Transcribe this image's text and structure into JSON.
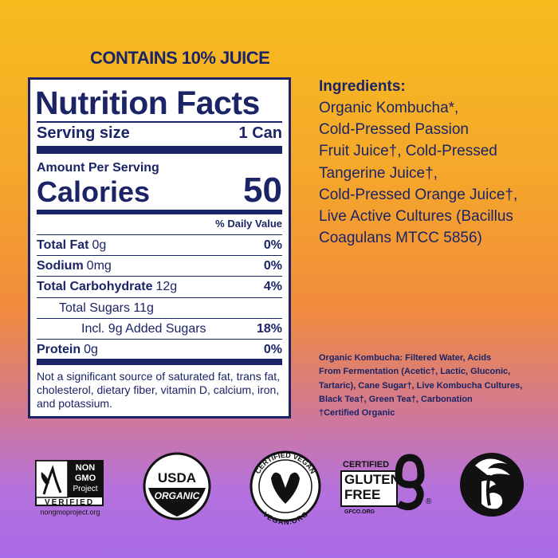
{
  "header": {
    "juice_note": "CONTAINS 10% JUICE"
  },
  "nutrition": {
    "title": "Nutrition Facts",
    "serving_label": "Serving size",
    "serving_value": "1 Can",
    "amount_per_serving": "Amount Per Serving",
    "calories_label": "Calories",
    "calories_value": "50",
    "dv_header": "% Daily Value",
    "rows": [
      {
        "label": "Total Fat",
        "amount": "0g",
        "dv": "0%"
      },
      {
        "label": "Sodium",
        "amount": "0mg",
        "dv": "0%"
      },
      {
        "label": "Total Carbohydrate",
        "amount": "12g",
        "dv": "4%"
      },
      {
        "label": "Total Sugars 11g"
      },
      {
        "label": "Incl. 9g Added Sugars",
        "dv": "18%"
      },
      {
        "label": "Protein",
        "amount": "0g",
        "dv": "0%"
      }
    ],
    "footnote": "Not a significant source of saturated fat, trans fat, cholesterol, dietary fiber, vitamin D, calcium, iron, and potassium."
  },
  "ingredients": {
    "title": "Ingredients:",
    "lines": [
      "Organic Kombucha*,",
      "Cold-Pressed Passion",
      "Fruit Juice†, Cold-Pressed",
      "Tangerine Juice†,",
      "Cold-Pressed Orange Juice†,",
      "Live Active Cultures (Bacillus",
      "Coagulans MTCC 5856)"
    ]
  },
  "kombucha_note": {
    "lines": [
      "Organic Kombucha: Filtered Water, Acids",
      "From Fermentation (Acetic†, Lactic, Gluconic,",
      "Tartaric), Cane Sugar†, Live Kombucha Cultures,",
      "Black Tea†, Green Tea†, Carbonation",
      "†Certified Organic"
    ]
  },
  "logos": {
    "non_gmo": {
      "line1": "NON",
      "line2": "GMO",
      "line3": "Project",
      "line4": "VERIFIED",
      "url": "nongmoproject.org"
    },
    "usda": {
      "line1": "USDA",
      "line2": "ORGANIC"
    },
    "vegan": {
      "top": "CERTIFIED VEGAN",
      "bottom": "VEGAN.ORG"
    },
    "gluten_free": {
      "top": "CERTIFIED",
      "line1": "GLUTEN",
      "line2": "FREE",
      "url": "GFCO.ORG",
      "mark": "®"
    }
  }
}
